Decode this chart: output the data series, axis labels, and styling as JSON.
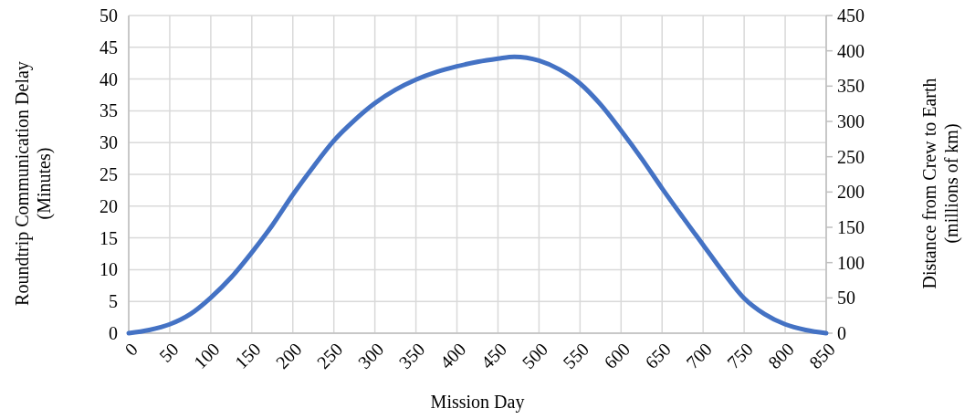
{
  "chart_data": {
    "type": "line",
    "xlabel": "Mission Day",
    "ylabel": "Roundtrip Communication Delay\n(Minutes)",
    "y2label": "Distance from Crew to Earth\n(millions of km)",
    "x": [
      0,
      25,
      50,
      75,
      100,
      125,
      150,
      175,
      200,
      225,
      250,
      275,
      300,
      325,
      350,
      375,
      400,
      425,
      450,
      470,
      500,
      525,
      550,
      575,
      600,
      625,
      650,
      675,
      700,
      725,
      750,
      775,
      800,
      825,
      850
    ],
    "series": [
      {
        "color": "#4472c4",
        "values": [
          0,
          0.5,
          1.4,
          3,
          5.6,
          8.8,
          12.7,
          17,
          21.8,
          26.2,
          30.3,
          33.5,
          36.2,
          38.3,
          39.9,
          41.1,
          42,
          42.7,
          43.2,
          43.5,
          42.9,
          41.5,
          39.3,
          36,
          31.9,
          27.5,
          22.8,
          18.3,
          13.9,
          9.5,
          5.5,
          3,
          1.4,
          0.5,
          0
        ]
      }
    ],
    "xlim": [
      0,
      850
    ],
    "xticks": [
      0,
      50,
      100,
      150,
      200,
      250,
      300,
      350,
      400,
      450,
      500,
      550,
      600,
      650,
      700,
      750,
      800,
      850
    ],
    "ylim": [
      0,
      50
    ],
    "yticks": [
      0,
      5,
      10,
      15,
      20,
      25,
      30,
      35,
      40,
      45,
      50
    ],
    "y2lim": [
      0,
      450
    ],
    "y2ticks": [
      0,
      50,
      100,
      150,
      200,
      250,
      300,
      350,
      400,
      450
    ],
    "grid": true,
    "line_style": "solid",
    "marker": "none"
  }
}
